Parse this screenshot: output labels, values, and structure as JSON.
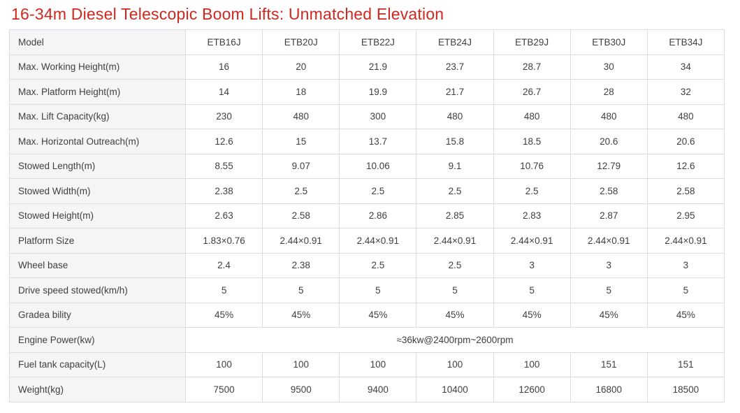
{
  "page": {
    "title": "16-34m Diesel Telescopic Boom Lifts: Unmatched Elevation",
    "title_color": "#d0281e"
  },
  "table": {
    "rows": [
      {
        "label": "Model",
        "values": [
          "ETB16J",
          "ETB20J",
          "ETB22J",
          "ETB24J",
          "ETB29J",
          "ETB30J",
          "ETB34J"
        ]
      },
      {
        "label": "Max. Working Height(m)",
        "values": [
          "16",
          "20",
          "21.9",
          "23.7",
          "28.7",
          "30",
          "34"
        ]
      },
      {
        "label": "Max. Platform Height(m)",
        "values": [
          "14",
          "18",
          "19.9",
          "21.7",
          "26.7",
          "28",
          "32"
        ]
      },
      {
        "label": "Max. Lift Capacity(kg)",
        "values": [
          "230",
          "480",
          "300",
          "480",
          "480",
          "480",
          "480"
        ]
      },
      {
        "label": "Max. Horizontal Outreach(m)",
        "values": [
          "12.6",
          "15",
          "13.7",
          "15.8",
          "18.5",
          "20.6",
          "20.6"
        ]
      },
      {
        "label": "Stowed Length(m)",
        "values": [
          "8.55",
          "9.07",
          "10.06",
          "9.1",
          "10.76",
          "12.79",
          "12.6"
        ]
      },
      {
        "label": "Stowed Width(m)",
        "values": [
          "2.38",
          "2.5",
          "2.5",
          "2.5",
          "2.5",
          "2.58",
          "2.58"
        ]
      },
      {
        "label": "Stowed Height(m)",
        "values": [
          "2.63",
          "2.58",
          "2.86",
          "2.85",
          "2.83",
          "2.87",
          "2.95"
        ]
      },
      {
        "label": "Platform Size",
        "values": [
          "1.83×0.76",
          "2.44×0.91",
          "2.44×0.91",
          "2.44×0.91",
          "2.44×0.91",
          "2.44×0.91",
          "2.44×0.91"
        ]
      },
      {
        "label": "Wheel base",
        "values": [
          "2.4",
          "2.38",
          "2.5",
          "2.5",
          "3",
          "3",
          "3"
        ]
      },
      {
        "label": "Drive speed stowed(km/h)",
        "values": [
          "5",
          "5",
          "5",
          "5",
          "5",
          "5",
          "5"
        ]
      },
      {
        "label": "Gradea bility",
        "values": [
          "45%",
          "45%",
          "45%",
          "45%",
          "45%",
          "45%",
          "45%"
        ]
      },
      {
        "label": "Engine Power(kw)",
        "merged": true,
        "merged_value": "≈36kw@2400rpm~2600rpm"
      },
      {
        "label": "Fuel tank capacity(L)",
        "values": [
          "100",
          "100",
          "100",
          "100",
          "100",
          "151",
          "151"
        ]
      },
      {
        "label": "Weight(kg)",
        "values": [
          "7500",
          "9500",
          "9400",
          "10400",
          "12600",
          "16800",
          "18500"
        ]
      }
    ],
    "colors": {
      "label_background": "#f4f5f7",
      "cell_background": "#ffffff",
      "border": "#d9dce0",
      "text": "#3f3f41"
    }
  },
  "chart_data": {
    "type": "table",
    "title": "16-34m Diesel Telescopic Boom Lifts: Unmatched Elevation",
    "columns": [
      "Model",
      "ETB16J",
      "ETB20J",
      "ETB22J",
      "ETB24J",
      "ETB29J",
      "ETB30J",
      "ETB34J"
    ],
    "rows": [
      [
        "Max. Working Height(m)",
        16,
        20,
        21.9,
        23.7,
        28.7,
        30,
        34
      ],
      [
        "Max. Platform Height(m)",
        14,
        18,
        19.9,
        21.7,
        26.7,
        28,
        32
      ],
      [
        "Max. Lift Capacity(kg)",
        230,
        480,
        300,
        480,
        480,
        480,
        480
      ],
      [
        "Max. Horizontal Outreach(m)",
        12.6,
        15,
        13.7,
        15.8,
        18.5,
        20.6,
        20.6
      ],
      [
        "Stowed Length(m)",
        8.55,
        9.07,
        10.06,
        9.1,
        10.76,
        12.79,
        12.6
      ],
      [
        "Stowed Width(m)",
        2.38,
        2.5,
        2.5,
        2.5,
        2.5,
        2.58,
        2.58
      ],
      [
        "Stowed Height(m)",
        2.63,
        2.58,
        2.86,
        2.85,
        2.83,
        2.87,
        2.95
      ],
      [
        "Platform Size",
        "1.83×0.76",
        "2.44×0.91",
        "2.44×0.91",
        "2.44×0.91",
        "2.44×0.91",
        "2.44×0.91",
        "2.44×0.91"
      ],
      [
        "Wheel base",
        2.4,
        2.38,
        2.5,
        2.5,
        3,
        3,
        3
      ],
      [
        "Drive speed stowed(km/h)",
        5,
        5,
        5,
        5,
        5,
        5,
        5
      ],
      [
        "Gradea bility",
        "45%",
        "45%",
        "45%",
        "45%",
        "45%",
        "45%",
        "45%"
      ],
      [
        "Engine Power(kw)",
        "≈36kw@2400rpm~2600rpm"
      ],
      [
        "Fuel tank capacity(L)",
        100,
        100,
        100,
        100,
        100,
        151,
        151
      ],
      [
        "Weight(kg)",
        7500,
        9500,
        9400,
        10400,
        12600,
        16800,
        18500
      ]
    ]
  }
}
